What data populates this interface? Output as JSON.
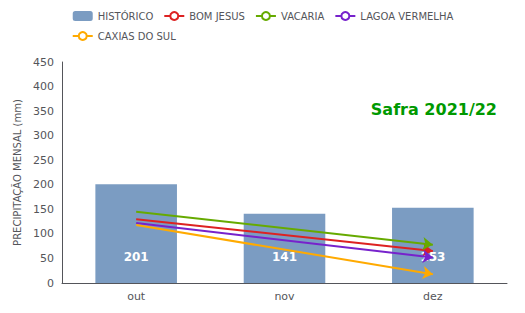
{
  "chart_data": {
    "type": "bar",
    "categories": [
      "out",
      "nov",
      "dez"
    ],
    "series": [
      {
        "name": "HISTÓRICO",
        "type": "bar",
        "color": "#7b9cc2",
        "values": [
          201,
          141,
          153
        ],
        "data_labels": true
      },
      {
        "name": "BOM JESUS",
        "type": "line",
        "marker": "arrow",
        "color": "#dd2222",
        "values": [
          130,
          null,
          65
        ]
      },
      {
        "name": "VACARIA",
        "type": "line",
        "marker": "arrow",
        "color": "#66aa00",
        "values": [
          145,
          null,
          78
        ]
      },
      {
        "name": "LAGOA VERMELHA",
        "type": "line",
        "marker": "arrow",
        "color": "#7722cc",
        "values": [
          122,
          null,
          52
        ]
      },
      {
        "name": "CAXIAS DO SUL",
        "type": "line",
        "marker": "arrow",
        "color": "#ffaa00",
        "values": [
          118,
          null,
          18
        ]
      }
    ],
    "ylabel": "PRECIPITAÇÃO MENSAL (mm)",
    "ylim": [
      0,
      450
    ],
    "yticks": [
      0,
      50,
      100,
      150,
      200,
      250,
      300,
      350,
      400,
      450
    ],
    "annotations": [
      {
        "text": "Safra 2021/22",
        "color": "#009900"
      }
    ],
    "grid": false,
    "legend": "top"
  }
}
